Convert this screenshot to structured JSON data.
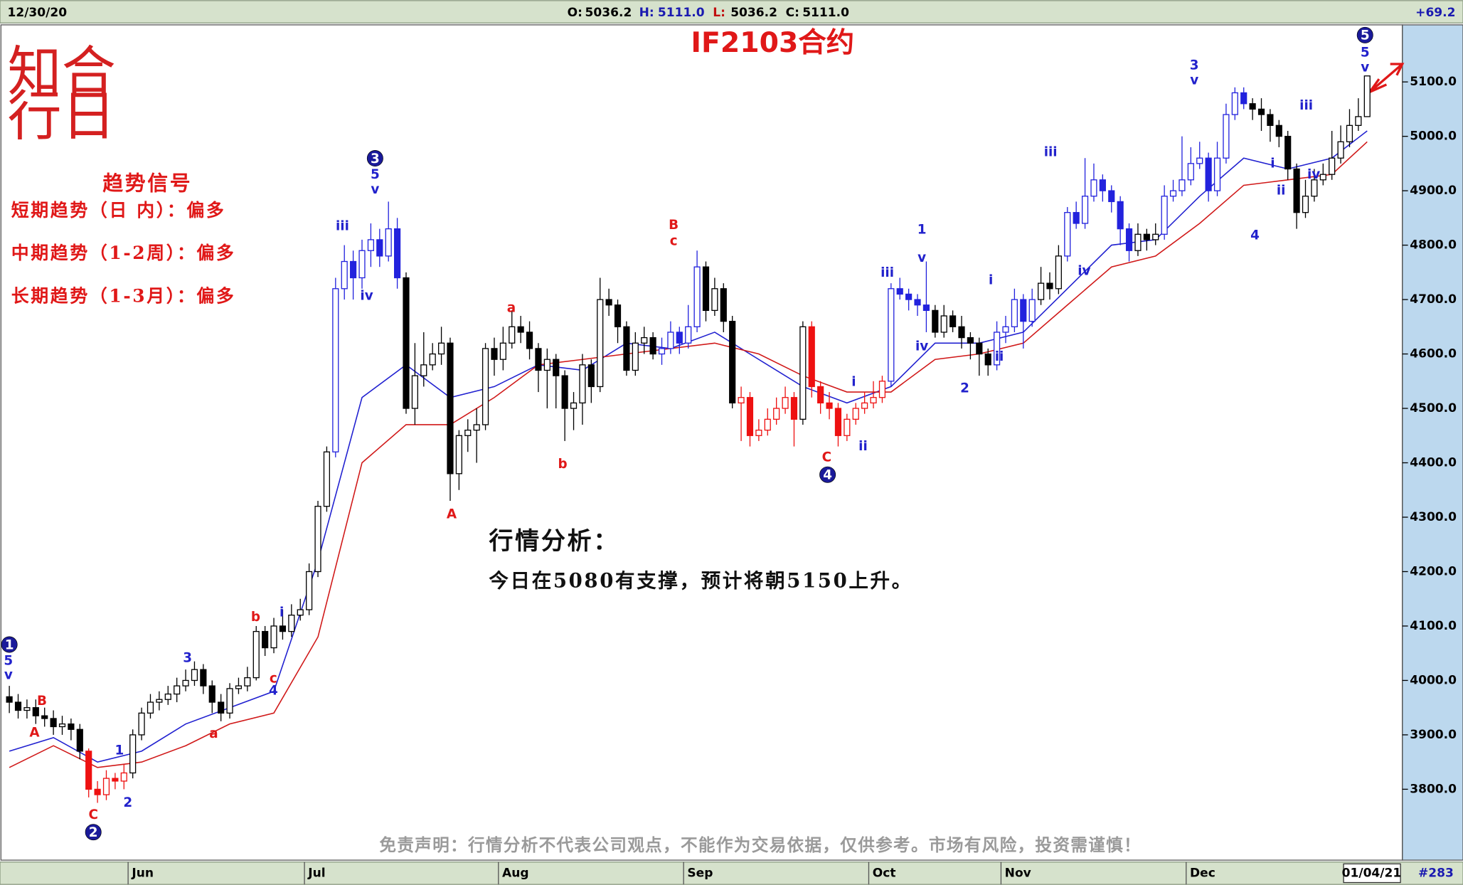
{
  "header": {
    "date": "12/30/20",
    "open_label": "O:",
    "open": "5036.2",
    "high_label": "H:",
    "high": "5111.0",
    "low_label": "L:",
    "low": "5036.2",
    "close_label": "C:",
    "close": "5111.0",
    "change": "+69.2"
  },
  "footer": {
    "date": "01/04/21",
    "count": "#283"
  },
  "logo": [
    "知合",
    "行日"
  ],
  "trend_panel": {
    "title": "趋势信号",
    "lines": [
      "短期趋势（日 内）：偏多",
      "中期趋势（1-2周）：偏多",
      "长期趋势（1-3月）：偏多"
    ]
  },
  "analysis": {
    "title": "行情分析：",
    "text": "今日在5080有支撑，预计将朝5150上升。"
  },
  "disclaimer": "免责声明：行情分析不代表公司观点，不能作为交易依据，仅供参考。市场有风险，投资需谨慎！",
  "chart_data": {
    "type": "candlestick",
    "title": "IF2103合约",
    "categories": [
      null,
      null,
      null,
      null,
      null,
      null,
      null,
      null,
      null,
      null,
      null,
      null,
      null,
      null,
      "Jun",
      null,
      null,
      null,
      null,
      null,
      null,
      null,
      null,
      null,
      null,
      null,
      null,
      null,
      null,
      null,
      null,
      null,
      null,
      null,
      "Jul",
      null,
      null,
      null,
      null,
      null,
      null,
      null,
      null,
      null,
      null,
      null,
      null,
      null,
      null,
      null,
      null,
      null,
      null,
      null,
      null,
      null,
      "Aug",
      null,
      null,
      null,
      null,
      null,
      null,
      null,
      null,
      null,
      null,
      null,
      null,
      null,
      null,
      null,
      null,
      null,
      null,
      null,
      null,
      "Sep",
      null,
      null,
      null,
      null,
      null,
      null,
      null,
      null,
      null,
      null,
      null,
      null,
      null,
      null,
      null,
      null,
      null,
      null,
      null,
      null,
      "Oct",
      null,
      null,
      null,
      null,
      null,
      null,
      null,
      null,
      null,
      null,
      null,
      null,
      null,
      null,
      "Nov",
      null,
      null,
      null,
      null,
      null,
      null,
      null,
      null,
      null,
      null,
      null,
      null,
      null,
      null,
      null,
      null,
      null,
      null,
      null,
      null,
      "Dec",
      null,
      null,
      null,
      null,
      null,
      null,
      null,
      null,
      null,
      null,
      null,
      null,
      null,
      null,
      null,
      null,
      null,
      null,
      null,
      null
    ],
    "open": [
      3970,
      3960,
      3945,
      3950,
      3935,
      3930,
      3915,
      3920,
      3910,
      3870,
      3800,
      3790,
      3820,
      3815,
      3830,
      3900,
      3940,
      3960,
      3965,
      3975,
      3990,
      4000,
      4020,
      3990,
      3960,
      3940,
      3985,
      3990,
      4005,
      4090,
      4060,
      4100,
      4090,
      4120,
      4130,
      4200,
      4320,
      4420,
      4720,
      4770,
      4740,
      4790,
      4810,
      4780,
      4830,
      4740,
      4500,
      4560,
      4580,
      4600,
      4620,
      4380,
      4450,
      4460,
      4470,
      4610,
      4590,
      4620,
      4650,
      4640,
      4610,
      4570,
      4590,
      4560,
      4500,
      4510,
      4580,
      4540,
      4700,
      4690,
      4650,
      4570,
      4620,
      4630,
      4600,
      4610,
      4640,
      4620,
      4650,
      4760,
      4680,
      4720,
      4660,
      4510,
      4520,
      4450,
      4460,
      4480,
      4500,
      4520,
      4480,
      4650,
      4540,
      4510,
      4500,
      4450,
      4480,
      4500,
      4510,
      4520,
      4550,
      4720,
      4710,
      4700,
      4690,
      4680,
      4640,
      4670,
      4650,
      4630,
      4620,
      4600,
      4580,
      4640,
      4650,
      4700,
      4660,
      4700,
      4730,
      4720,
      4780,
      4860,
      4840,
      4890,
      4920,
      4900,
      4880,
      4830,
      4790,
      4820,
      4810,
      4820,
      4890,
      4900,
      4920,
      4950,
      4960,
      4900,
      4960,
      5040,
      5080,
      5060,
      5050,
      5040,
      5020,
      5000,
      4940,
      4860,
      4890,
      4920,
      4930,
      4960,
      4990,
      5020,
      5036.2
    ],
    "high": [
      3990,
      3975,
      3965,
      3965,
      3950,
      3945,
      3935,
      3930,
      3920,
      3875,
      3815,
      3835,
      3830,
      3845,
      3910,
      3950,
      3975,
      3980,
      3990,
      4005,
      4020,
      4035,
      4030,
      4000,
      3975,
      3995,
      4005,
      4025,
      4100,
      4100,
      4115,
      4130,
      4140,
      4150,
      4215,
      4330,
      4430,
      4740,
      4800,
      4790,
      4810,
      4840,
      4830,
      4880,
      4850,
      4750,
      4620,
      4640,
      4620,
      4650,
      4630,
      4460,
      4480,
      4500,
      4620,
      4630,
      4650,
      4680,
      4670,
      4660,
      4620,
      4610,
      4600,
      4570,
      4530,
      4600,
      4590,
      4740,
      4720,
      4700,
      4660,
      4640,
      4650,
      4640,
      4630,
      4660,
      4650,
      4690,
      4790,
      4770,
      4740,
      4730,
      4670,
      4540,
      4530,
      4480,
      4500,
      4520,
      4540,
      4530,
      4660,
      4660,
      4550,
      4530,
      4510,
      4490,
      4510,
      4530,
      4550,
      4560,
      4730,
      4740,
      4720,
      4710,
      4770,
      4690,
      4690,
      4680,
      4670,
      4640,
      4630,
      4610,
      4660,
      4670,
      4720,
      4710,
      4720,
      4760,
      4750,
      4800,
      4870,
      4880,
      4960,
      4950,
      4930,
      4910,
      4890,
      4840,
      4840,
      4830,
      4840,
      4910,
      4920,
      5000,
      4980,
      4990,
      4970,
      4990,
      5060,
      5090,
      5090,
      5070,
      5070,
      5050,
      5030,
      5010,
      4950,
      4920,
      4940,
      4950,
      5010,
      5020,
      5050,
      5070,
      5111
    ],
    "low": [
      3940,
      3930,
      3930,
      3920,
      3915,
      3900,
      3900,
      3890,
      3855,
      3785,
      3775,
      3780,
      3800,
      3800,
      3820,
      3890,
      3930,
      3945,
      3955,
      3960,
      3980,
      3990,
      3975,
      3940,
      3925,
      3930,
      3975,
      3980,
      4000,
      4045,
      4050,
      4075,
      4080,
      4110,
      4120,
      4190,
      4310,
      4410,
      4700,
      4700,
      4720,
      4760,
      4760,
      4770,
      4720,
      4490,
      4470,
      4540,
      4570,
      4580,
      4330,
      4350,
      4420,
      4400,
      4460,
      4560,
      4570,
      4610,
      4620,
      4590,
      4530,
      4500,
      4500,
      4440,
      4460,
      4470,
      4510,
      4530,
      4670,
      4620,
      4560,
      4560,
      4600,
      4590,
      4580,
      4600,
      4600,
      4610,
      4640,
      4660,
      4670,
      4640,
      4500,
      4440,
      4430,
      4440,
      4450,
      4470,
      4490,
      4430,
      4470,
      4520,
      4490,
      4480,
      4430,
      4440,
      4470,
      4490,
      4500,
      4510,
      4540,
      4700,
      4680,
      4670,
      4640,
      4630,
      4630,
      4640,
      4610,
      4590,
      4560,
      4560,
      4570,
      4620,
      4640,
      4610,
      4650,
      4690,
      4700,
      4710,
      4770,
      4830,
      4830,
      4880,
      4880,
      4860,
      4800,
      4770,
      4780,
      4790,
      4800,
      4810,
      4880,
      4890,
      4910,
      4940,
      4880,
      4890,
      4950,
      5030,
      5050,
      5030,
      5010,
      4990,
      4980,
      4920,
      4830,
      4850,
      4880,
      4910,
      4920,
      4950,
      4980,
      5010,
      5036.2
    ],
    "close": [
      3960,
      3945,
      3950,
      3935,
      3930,
      3915,
      3920,
      3910,
      3870,
      3800,
      3790,
      3820,
      3815,
      3830,
      3900,
      3940,
      3960,
      3965,
      3975,
      3990,
      4000,
      4020,
      3990,
      3960,
      3940,
      3985,
      3990,
      4005,
      4090,
      4060,
      4100,
      4090,
      4120,
      4130,
      4200,
      4320,
      4420,
      4720,
      4770,
      4740,
      4790,
      4810,
      4780,
      4830,
      4740,
      4500,
      4560,
      4580,
      4600,
      4620,
      4380,
      4450,
      4460,
      4470,
      4610,
      4590,
      4620,
      4650,
      4640,
      4610,
      4570,
      4590,
      4560,
      4500,
      4510,
      4580,
      4540,
      4700,
      4690,
      4650,
      4570,
      4620,
      4630,
      4600,
      4610,
      4640,
      4620,
      4650,
      4760,
      4680,
      4720,
      4660,
      4510,
      4520,
      4450,
      4460,
      4480,
      4500,
      4520,
      4480,
      4650,
      4540,
      4510,
      4500,
      4450,
      4480,
      4500,
      4510,
      4520,
      4550,
      4720,
      4710,
      4700,
      4690,
      4680,
      4640,
      4670,
      4650,
      4630,
      4620,
      4600,
      4580,
      4640,
      4650,
      4700,
      4660,
      4700,
      4730,
      4720,
      4780,
      4860,
      4840,
      4890,
      4920,
      4900,
      4880,
      4830,
      4790,
      4820,
      4810,
      4820,
      4890,
      4900,
      4920,
      4950,
      4960,
      4900,
      4960,
      5040,
      5080,
      5060,
      5050,
      5040,
      5020,
      5000,
      4940,
      4860,
      4890,
      4920,
      4930,
      4960,
      4990,
      5020,
      5036.2,
      5111.0
    ],
    "colors": [
      "#000",
      "#000",
      "#000",
      "#000",
      "#000",
      "#000",
      "#000",
      "#000",
      "#000",
      "#e11",
      "#e11",
      "#e11",
      "#e11",
      "#e11",
      "#000",
      "#000",
      "#000",
      "#000",
      "#000",
      "#000",
      "#000",
      "#000",
      "#000",
      "#000",
      "#000",
      "#000",
      "#000",
      "#000",
      "#000",
      "#000",
      "#000",
      "#000",
      "#000",
      "#000",
      "#000",
      "#000",
      "#000",
      "#22d",
      "#22d",
      "#22d",
      "#22d",
      "#22d",
      "#22d",
      "#22d",
      "#22d",
      "#000",
      "#000",
      "#000",
      "#000",
      "#000",
      "#000",
      "#000",
      "#000",
      "#000",
      "#000",
      "#000",
      "#000",
      "#000",
      "#000",
      "#000",
      "#000",
      "#000",
      "#000",
      "#000",
      "#000",
      "#000",
      "#000",
      "#000",
      "#000",
      "#000",
      "#000",
      "#000",
      "#000",
      "#000",
      "#22d",
      "#22d",
      "#22d",
      "#22d",
      "#22d",
      "#000",
      "#000",
      "#000",
      "#000",
      "#e11",
      "#e11",
      "#e11",
      "#e11",
      "#e11",
      "#e11",
      "#e11",
      "#000",
      "#e11",
      "#e11",
      "#e11",
      "#e11",
      "#e11",
      "#e11",
      "#e11",
      "#e11",
      "#e11",
      "#22d",
      "#22d",
      "#22d",
      "#22d",
      "#22d",
      "#000",
      "#000",
      "#000",
      "#000",
      "#000",
      "#000",
      "#000",
      "#22d",
      "#22d",
      "#22d",
      "#22d",
      "#22d",
      "#000",
      "#000",
      "#000",
      "#22d",
      "#22d",
      "#22d",
      "#22d",
      "#22d",
      "#22d",
      "#22d",
      "#22d",
      "#000",
      "#000",
      "#000",
      "#22d",
      "#22d",
      "#22d",
      "#22d",
      "#22d",
      "#22d",
      "#22d",
      "#22d",
      "#22d",
      "#22d",
      "#000",
      "#000",
      "#000",
      "#000",
      "#000",
      "#000",
      "#000",
      "#000",
      "#000",
      "#000",
      "#000",
      "#000",
      "#000",
      "#000"
    ],
    "series": [
      {
        "color": "#2020d0",
        "x": [
          0,
          5,
          10,
          15,
          20,
          25,
          30,
          35,
          40,
          45,
          50,
          55,
          60,
          65,
          70,
          75,
          80,
          85,
          90,
          95,
          100,
          105,
          110,
          115,
          120,
          125,
          130,
          135,
          140,
          145,
          150,
          154
        ],
        "values": [
          3870,
          3895,
          3850,
          3870,
          3920,
          3950,
          3980,
          4220,
          4520,
          4580,
          4520,
          4540,
          4580,
          4570,
          4620,
          4610,
          4640,
          4590,
          4540,
          4510,
          4540,
          4620,
          4620,
          4640,
          4720,
          4800,
          4810,
          4890,
          4960,
          4940,
          4960,
          5010
        ]
      },
      {
        "color": "#d01818",
        "x": [
          0,
          5,
          10,
          15,
          20,
          25,
          30,
          35,
          40,
          45,
          50,
          55,
          60,
          65,
          70,
          75,
          80,
          85,
          90,
          95,
          100,
          105,
          110,
          115,
          120,
          125,
          130,
          135,
          140,
          145,
          150,
          154
        ],
        "values": [
          3840,
          3880,
          3840,
          3850,
          3880,
          3920,
          3940,
          4080,
          4400,
          4470,
          4470,
          4520,
          4580,
          4590,
          4600,
          4610,
          4620,
          4600,
          4560,
          4530,
          4530,
          4590,
          4600,
          4620,
          4690,
          4760,
          4780,
          4840,
          4910,
          4920,
          4930,
          4990
        ]
      }
    ],
    "ylim": [
      3680,
      5198
    ],
    "yticks": [
      {
        "value": 3800,
        "label": "3800.0"
      },
      {
        "value": 3900,
        "label": "3900.0"
      },
      {
        "value": 4000,
        "label": "4000.0"
      },
      {
        "value": 4100,
        "label": "4100.0"
      },
      {
        "value": 4200,
        "label": "4200.0"
      },
      {
        "value": 4300,
        "label": "4300.0"
      },
      {
        "value": 4400,
        "label": "4400.0"
      },
      {
        "value": 4500,
        "label": "4500.0"
      },
      {
        "value": 4600,
        "label": "4600.0"
      },
      {
        "value": 4700,
        "label": "4700.0"
      },
      {
        "value": 4800,
        "label": "4800.0"
      },
      {
        "value": 4900,
        "label": "4900.0"
      },
      {
        "value": 5000,
        "label": "5000.0"
      },
      {
        "value": 5100,
        "label": "5100.0"
      }
    ],
    "annotations": [
      {
        "text": "1",
        "color": "#1a1a9a",
        "circled": true
      },
      {
        "text": "5",
        "color": "#2222cc"
      },
      {
        "text": "v",
        "color": "#2222cc"
      },
      {
        "text": "B",
        "color": "#e01818"
      },
      {
        "text": "A",
        "color": "#e01818"
      },
      {
        "text": "C",
        "color": "#e01818"
      },
      {
        "text": "2",
        "color": "#1a1a9a",
        "circled": true
      },
      {
        "text": "1",
        "color": "#2222cc"
      },
      {
        "text": "2",
        "color": "#2222cc"
      },
      {
        "text": "3",
        "color": "#2222cc"
      },
      {
        "text": "b",
        "color": "#e01818"
      },
      {
        "text": "i",
        "color": "#2222cc"
      },
      {
        "text": "c",
        "color": "#e01818"
      },
      {
        "text": "4",
        "color": "#2222cc"
      },
      {
        "text": "a",
        "color": "#e01818"
      },
      {
        "text": "3",
        "color": "#1a1a9a",
        "circled": true
      },
      {
        "text": "5",
        "color": "#2222cc"
      },
      {
        "text": "v",
        "color": "#2222cc"
      },
      {
        "text": "iii",
        "color": "#2222cc"
      },
      {
        "text": "iv",
        "color": "#2222cc"
      },
      {
        "text": "A",
        "color": "#e01818"
      },
      {
        "text": "a",
        "color": "#e01818"
      },
      {
        "text": "b",
        "color": "#e01818"
      },
      {
        "text": "B",
        "color": "#e01818"
      },
      {
        "text": "c",
        "color": "#e01818"
      },
      {
        "text": "C",
        "color": "#e01818"
      },
      {
        "text": "4",
        "color": "#1a1a9a",
        "circled": true
      },
      {
        "text": "i",
        "color": "#2222cc"
      },
      {
        "text": "ii",
        "color": "#2222cc"
      },
      {
        "text": "iii",
        "color": "#2222cc"
      },
      {
        "text": "1",
        "color": "#2222cc"
      },
      {
        "text": "v",
        "color": "#2222cc"
      },
      {
        "text": "iv",
        "color": "#2222cc"
      },
      {
        "text": "2",
        "color": "#2222cc"
      },
      {
        "text": "i",
        "color": "#2222cc"
      },
      {
        "text": "ii",
        "color": "#2222cc"
      },
      {
        "text": "iii",
        "color": "#2222cc"
      },
      {
        "text": "iv",
        "color": "#2222cc"
      },
      {
        "text": "3",
        "color": "#2222cc"
      },
      {
        "text": "v",
        "color": "#2222cc"
      },
      {
        "text": "4",
        "color": "#2222cc"
      },
      {
        "text": "i",
        "color": "#2222cc"
      },
      {
        "text": "ii",
        "color": "#2222cc"
      },
      {
        "text": "iii",
        "color": "#2222cc"
      },
      {
        "text": "iv",
        "color": "#2222cc"
      },
      {
        "text": "5",
        "color": "#1a1a9a",
        "circled": true
      },
      {
        "text": "5",
        "color": "#2222cc"
      },
      {
        "text": "v",
        "color": "#2222cc"
      }
    ]
  }
}
